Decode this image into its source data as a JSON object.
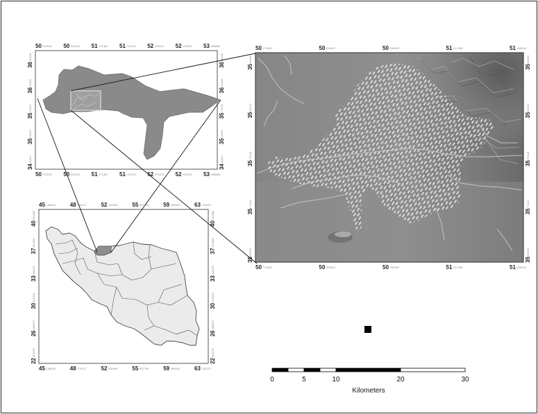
{
  "maps": {
    "region": {
      "top_ticks": [
        {
          "deg": "50",
          "sub": "372020"
        },
        {
          "deg": "50",
          "sub": "921661"
        },
        {
          "deg": "51",
          "sub": "471302"
        },
        {
          "deg": "51",
          "sub": "021013"
        },
        {
          "deg": "52",
          "sub": "570574"
        },
        {
          "deg": "52",
          "sub": "020335"
        },
        {
          "deg": "53",
          "sub": "069888"
        }
      ],
      "bottom_ticks": [
        {
          "deg": "50",
          "sub": "372020"
        },
        {
          "deg": "50",
          "sub": "921661"
        },
        {
          "deg": "51",
          "sub": "471302"
        },
        {
          "deg": "51",
          "sub": "021013"
        },
        {
          "deg": "52",
          "sub": "570574"
        },
        {
          "deg": "52",
          "sub": "020335"
        },
        {
          "deg": "53",
          "sub": "069888"
        }
      ],
      "left_ticks": [
        {
          "deg": "36",
          "sub": "00448"
        },
        {
          "deg": "36",
          "sub": "75366"
        },
        {
          "deg": "35",
          "sub": "72010"
        },
        {
          "deg": "35",
          "sub": "20463"
        },
        {
          "deg": "34",
          "sub": "00912"
        }
      ],
      "right_ticks": [
        {
          "deg": "36",
          "sub": "00448"
        },
        {
          "deg": "36",
          "sub": "75366"
        },
        {
          "deg": "35",
          "sub": "72010"
        },
        {
          "deg": "35",
          "sub": "20463"
        },
        {
          "deg": "34",
          "sub": "00912"
        }
      ]
    },
    "country": {
      "top_ticks": [
        {
          "deg": "45",
          "sub": "138426"
        },
        {
          "deg": "48",
          "sub": "700217"
        },
        {
          "deg": "52",
          "sub": "260008"
        },
        {
          "deg": "55",
          "sub": "807790"
        },
        {
          "deg": "59",
          "sub": "390582"
        },
        {
          "deg": "63",
          "sub": "150370"
        }
      ],
      "bottom_ticks": [
        {
          "deg": "45",
          "sub": "138426"
        },
        {
          "deg": "48",
          "sub": "700217"
        },
        {
          "deg": "52",
          "sub": "260008"
        },
        {
          "deg": "55",
          "sub": "807790"
        },
        {
          "deg": "59",
          "sub": "390582"
        },
        {
          "deg": "63",
          "sub": "150370"
        }
      ],
      "left_ticks": [
        {
          "deg": "40",
          "sub": "260480"
        },
        {
          "deg": "37",
          "sub": "011806"
        },
        {
          "deg": "33",
          "sub": "446213"
        },
        {
          "deg": "30",
          "sub": "102516"
        },
        {
          "deg": "26",
          "sub": "498057"
        },
        {
          "deg": "22",
          "sub": "892729"
        }
      ],
      "right_ticks": [
        {
          "deg": "40",
          "sub": "260480"
        },
        {
          "deg": "37",
          "sub": "011806"
        },
        {
          "deg": "33",
          "sub": "446213"
        },
        {
          "deg": "30",
          "sub": "102516"
        },
        {
          "deg": "26",
          "sub": "498057"
        },
        {
          "deg": "22",
          "sub": "892729"
        }
      ]
    },
    "detail": {
      "top_ticks": [
        {
          "deg": "50",
          "sub": "774920"
        },
        {
          "deg": "50",
          "sub": "855621"
        },
        {
          "deg": "50",
          "sub": "936359"
        },
        {
          "deg": "51",
          "sub": "017498"
        },
        {
          "deg": "51",
          "sub": "098438"
        }
      ],
      "bottom_ticks": [
        {
          "deg": "50",
          "sub": "774920"
        },
        {
          "deg": "50",
          "sub": "855621"
        },
        {
          "deg": "50",
          "sub": "936359"
        },
        {
          "deg": "51",
          "sub": "017498"
        },
        {
          "deg": "51",
          "sub": "098438"
        }
      ],
      "left_ticks": [
        {
          "deg": "35",
          "sub": "00960"
        },
        {
          "deg": "35",
          "sub": "82319"
        },
        {
          "deg": "35",
          "sub": "70149"
        },
        {
          "deg": "35",
          "sub": "72142"
        },
        {
          "deg": "35",
          "sub": "65536"
        }
      ],
      "right_ticks": [
        {
          "deg": "35",
          "sub": "00960"
        },
        {
          "deg": "35",
          "sub": "82319"
        },
        {
          "deg": "35",
          "sub": "70149"
        },
        {
          "deg": "35",
          "sub": "72142"
        },
        {
          "deg": "35",
          "sub": "65536"
        }
      ]
    }
  },
  "scale_bar": {
    "labels": [
      "0",
      "5",
      "10",
      "20",
      "30"
    ],
    "unit": "Kilometers"
  },
  "colors": {
    "region_fill": "#8a8a8a",
    "country_fill": "#ebebeb",
    "highlight_fill": "#8f8f8f",
    "relief_base": "#8c8c8c",
    "hatch": "#e6e6e6"
  }
}
